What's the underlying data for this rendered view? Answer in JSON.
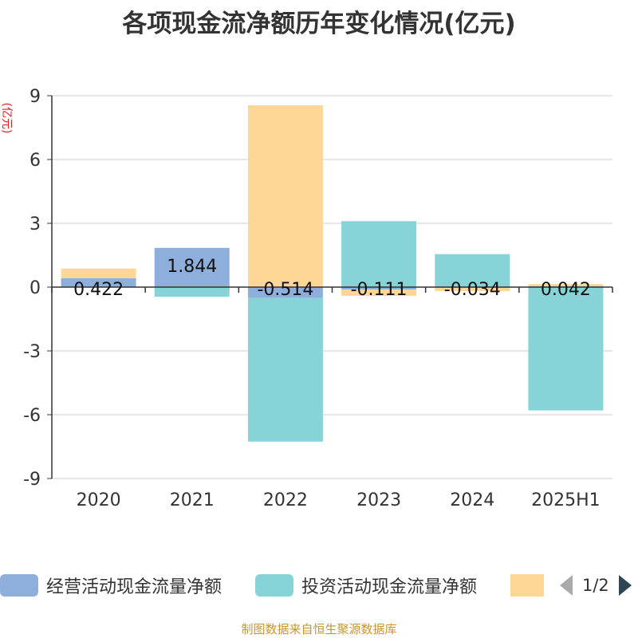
{
  "title": "各项现金流净额历年变化情况(亿元)",
  "footer": "制图数据来自恒生聚源数据库",
  "legend_pager": "1/2",
  "chart_data": {
    "type": "bar",
    "stacked": true,
    "categories": [
      "2020",
      "2021",
      "2022",
      "2023",
      "2024",
      "2025H1"
    ],
    "ylabel": "(亿元)",
    "ylim": [
      -9,
      9
    ],
    "yticks": [
      9,
      6,
      3,
      0,
      -3,
      -6,
      -9
    ],
    "grid": true,
    "legend_position": "bottom",
    "series": [
      {
        "name": "经营活动现金流量净额",
        "color": "#8eaedb",
        "values": [
          0.422,
          1.844,
          -0.514,
          -0.111,
          -0.034,
          0.042
        ],
        "labels": [
          "0.422",
          "1.844",
          "-0.514",
          "-0.111",
          "-0.034",
          "0.042"
        ]
      },
      {
        "name": "投资活动现金流量净额",
        "color": "#86d4d8",
        "values": [
          0.0,
          -0.45,
          -6.75,
          3.1,
          1.55,
          -5.8
        ]
      },
      {
        "color": "#fed695",
        "values": [
          0.45,
          0.0,
          8.55,
          -0.3,
          -0.15,
          0.1
        ]
      }
    ]
  }
}
